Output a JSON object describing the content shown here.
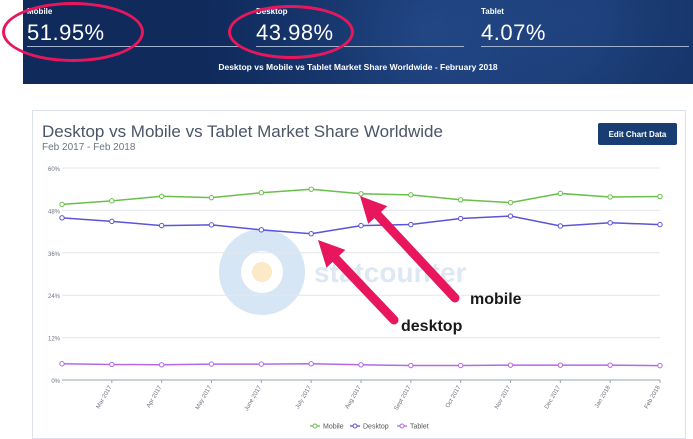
{
  "banner": {
    "stats": [
      {
        "label": "Mobile",
        "value": "51.95%"
      },
      {
        "label": "Desktop",
        "value": "43.98%"
      },
      {
        "label": "Tablet",
        "value": "4.07%"
      }
    ],
    "subtitle": "Desktop vs Mobile vs Tablet Market Share Worldwide - February 2018"
  },
  "card": {
    "edit_button": "Edit Chart Data",
    "watermark": "statcounter"
  },
  "annotations": {
    "mobile": "mobile",
    "desktop": "desktop"
  },
  "colors": {
    "mobile": "#6abf4b",
    "desktop": "#5b54d6",
    "tablet": "#b36ae2",
    "highlight": "#e8175d",
    "banner": "#0f2a5b"
  },
  "chart_data": {
    "type": "line",
    "title": "Desktop vs Mobile vs Tablet Market Share Worldwide",
    "subtitle": "Feb 2017 - Feb 2018",
    "categories": [
      "Feb 2017",
      "Mar 2017",
      "Apr 2017",
      "May 2017",
      "June 2017",
      "July 2017",
      "Aug 2017",
      "Sept 2017",
      "Oct 2017",
      "Nov 2017",
      "Dec 2017",
      "Jan 2018",
      "Feb 2018"
    ],
    "tick_labels": [
      "Mar 2017",
      "Apr 2017",
      "May 2017",
      "June 2017",
      "July 2017",
      "Aug 2017",
      "Sept 2017",
      "Oct 2017",
      "Nov 2017",
      "Dec 2017",
      "Jan 2018",
      "Feb 2018"
    ],
    "y_ticks": [
      "0%",
      "12%",
      "24%",
      "36%",
      "48%",
      "60%"
    ],
    "ylim": [
      0,
      60
    ],
    "grid": true,
    "legend": "bottom",
    "series": [
      {
        "name": "Mobile",
        "values": [
          49.7,
          50.7,
          52.0,
          51.6,
          53.0,
          54.0,
          52.7,
          52.4,
          51.0,
          50.2,
          52.8,
          51.8,
          51.95
        ]
      },
      {
        "name": "Desktop",
        "values": [
          45.9,
          44.9,
          43.7,
          43.9,
          42.5,
          41.4,
          43.7,
          44.0,
          45.7,
          46.4,
          43.6,
          44.5,
          43.98
        ]
      },
      {
        "name": "Tablet",
        "values": [
          4.6,
          4.4,
          4.3,
          4.5,
          4.5,
          4.6,
          4.3,
          4.1,
          4.1,
          4.2,
          4.2,
          4.2,
          4.07
        ]
      }
    ]
  }
}
